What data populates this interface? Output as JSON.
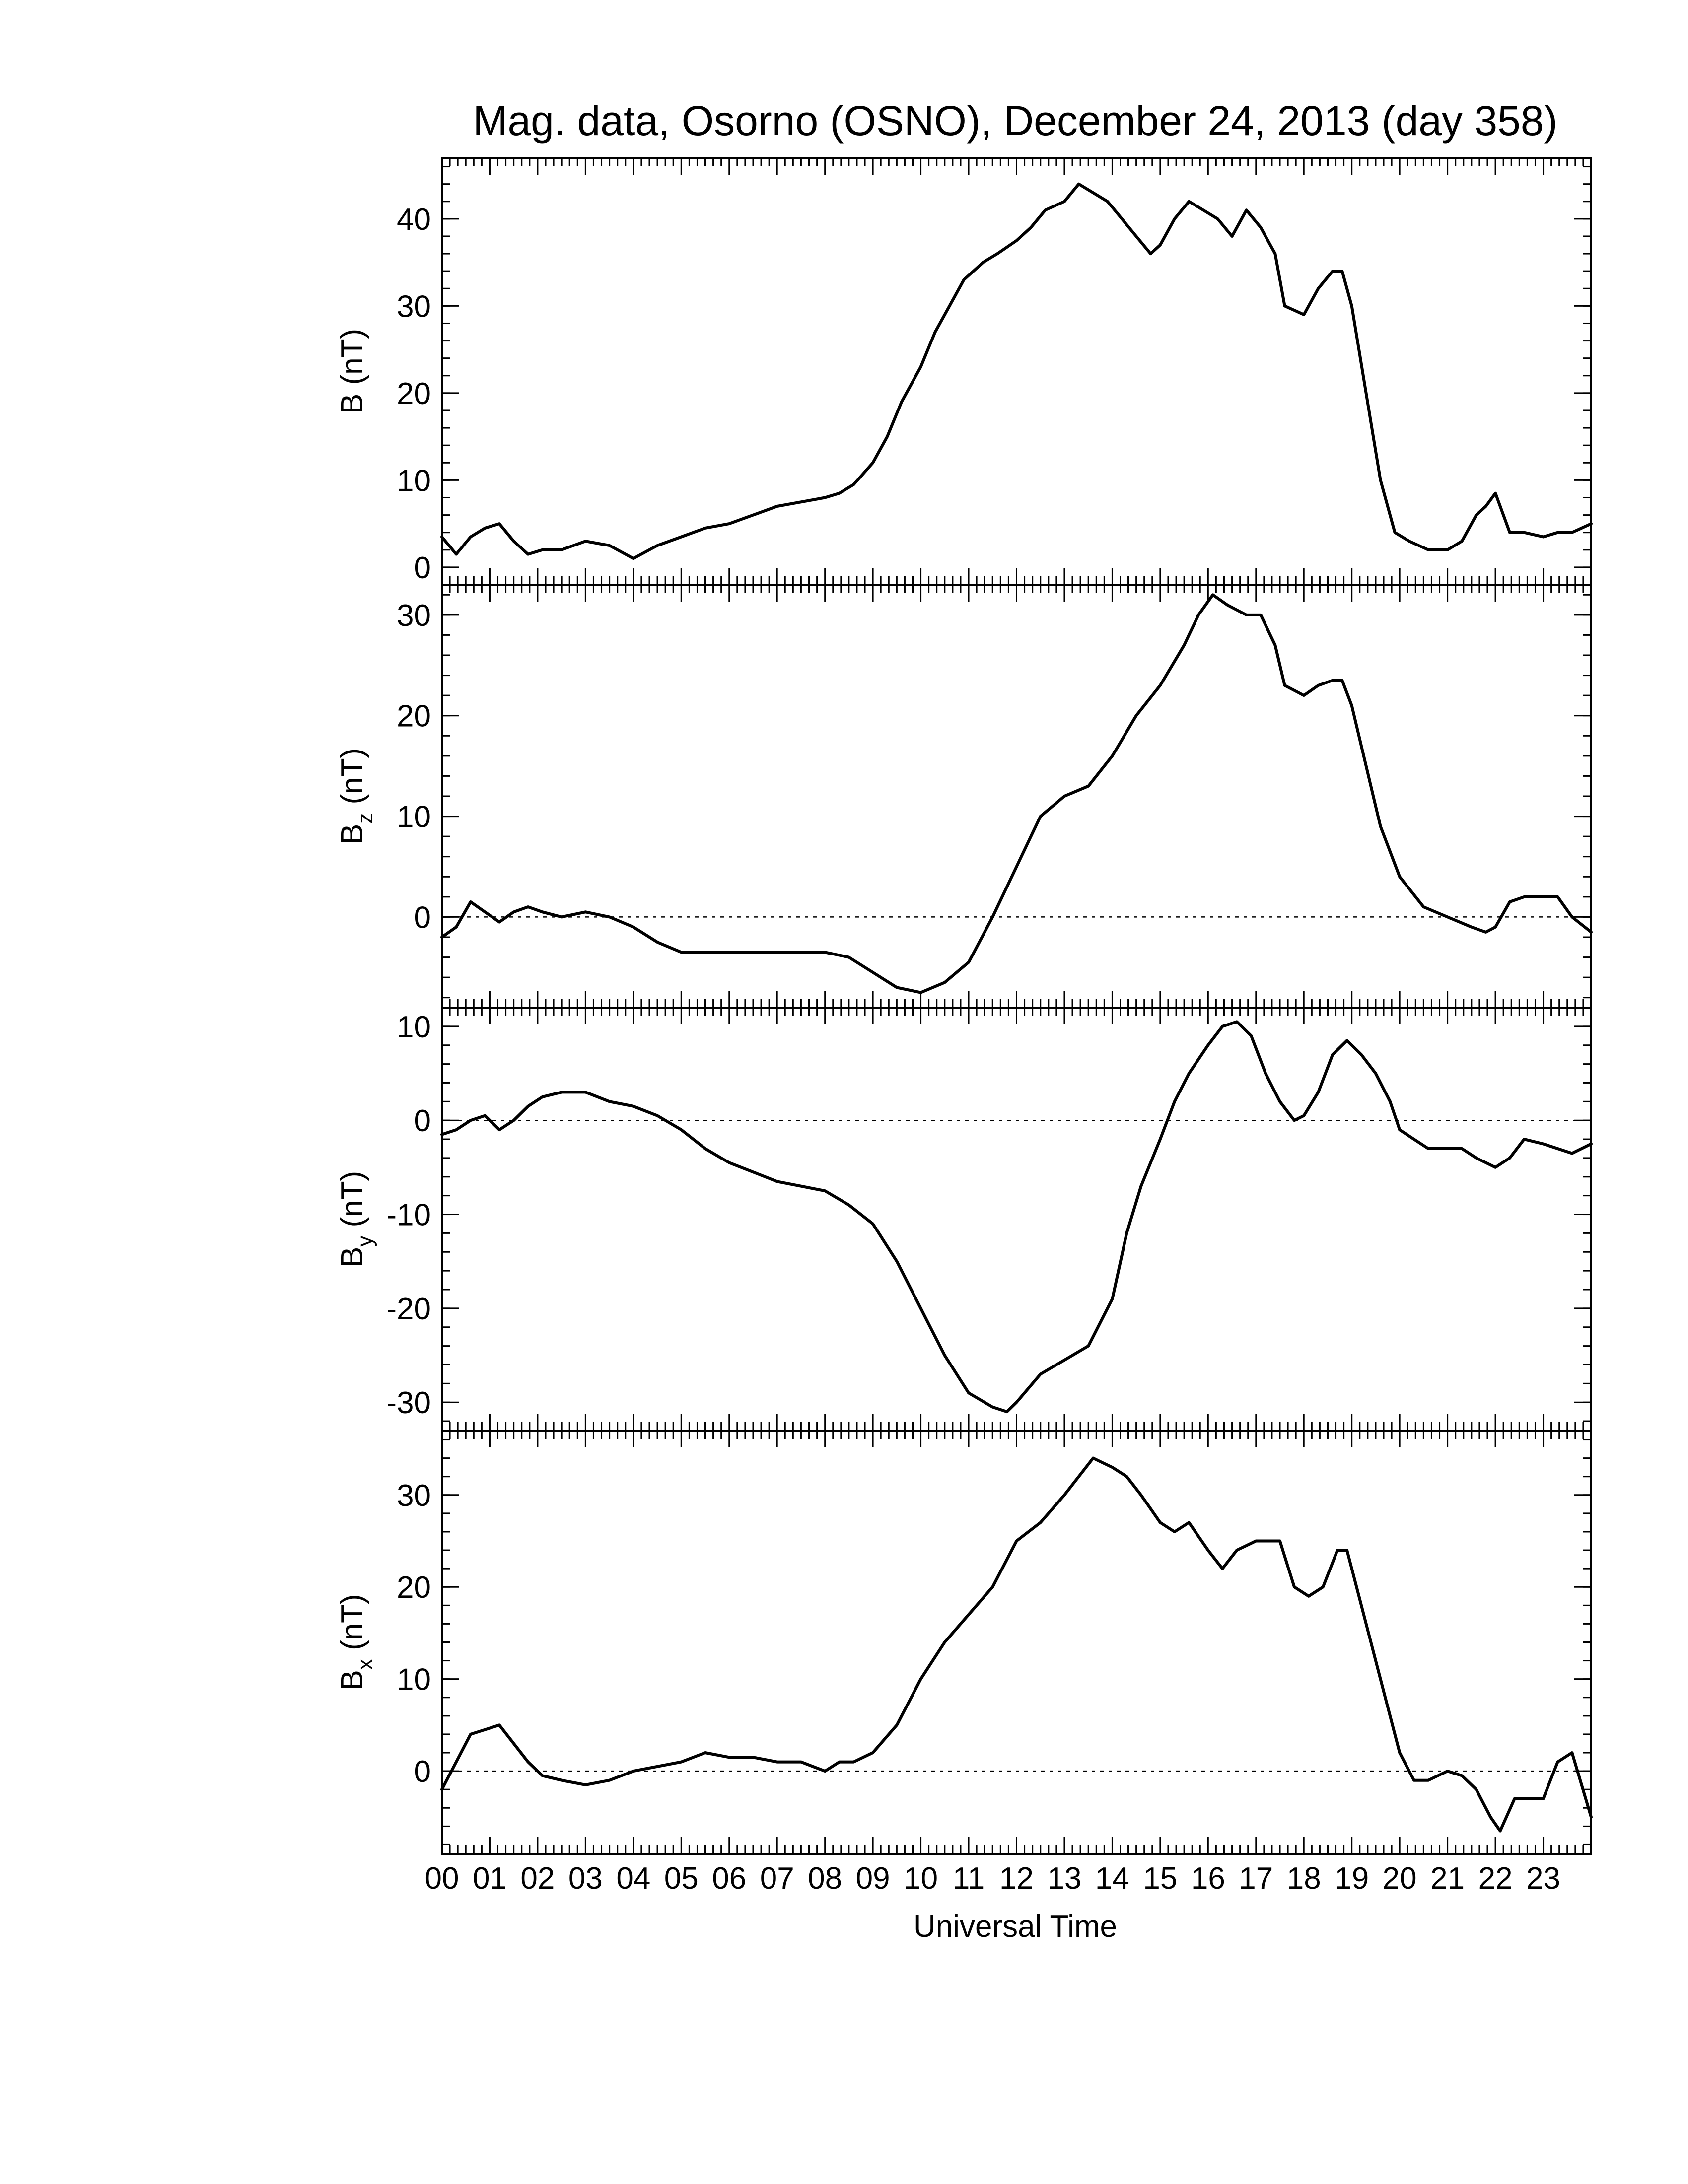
{
  "title": "Mag. data, Osorno (OSNO), December 24, 2013 (day 358)",
  "xlabel": "Universal Time",
  "x_tick_labels": [
    "00",
    "01",
    "02",
    "03",
    "04",
    "05",
    "06",
    "07",
    "08",
    "09",
    "10",
    "11",
    "12",
    "13",
    "14",
    "15",
    "16",
    "17",
    "18",
    "19",
    "20",
    "21",
    "22",
    "23"
  ],
  "colors": {
    "line": "#000000",
    "background": "#ffffff"
  },
  "chart_data": [
    {
      "type": "line",
      "ylabel": "B (nT)",
      "ylim": [
        -2,
        47
      ],
      "yticks": [
        0,
        10,
        20,
        30,
        40
      ],
      "zero_line": false,
      "x": [
        0,
        0.3,
        0.6,
        0.9,
        1.2,
        1.5,
        1.8,
        2.1,
        2.5,
        3.0,
        3.5,
        4.0,
        4.5,
        5.0,
        5.5,
        6.0,
        6.5,
        7.0,
        7.5,
        8.0,
        8.3,
        8.6,
        9.0,
        9.3,
        9.6,
        10.0,
        10.3,
        10.6,
        10.9,
        11.0,
        11.3,
        11.6,
        12.0,
        12.3,
        12.6,
        13.0,
        13.3,
        13.6,
        13.9,
        14.2,
        14.5,
        14.8,
        15.0,
        15.3,
        15.6,
        15.9,
        16.2,
        16.5,
        16.8,
        17.1,
        17.4,
        17.6,
        18.0,
        18.3,
        18.6,
        18.8,
        19.0,
        19.3,
        19.6,
        19.9,
        20.2,
        20.6,
        21.0,
        21.3,
        21.6,
        21.8,
        22.0,
        22.3,
        22.6,
        23.0,
        23.3,
        23.6,
        24.0
      ],
      "y": [
        3.5,
        1.5,
        3.5,
        4.5,
        5,
        3,
        1.5,
        2,
        2,
        3,
        2.5,
        1,
        2.5,
        3.5,
        4.5,
        5,
        6,
        7,
        7.5,
        8,
        8.5,
        9.5,
        12,
        15,
        19,
        23,
        27,
        30,
        33,
        33.5,
        35,
        36,
        37.5,
        39,
        41,
        42,
        44,
        43,
        42,
        40,
        38,
        36,
        37,
        40,
        42,
        41,
        40,
        38,
        41,
        39,
        36,
        30,
        29,
        32,
        34,
        34,
        30,
        20,
        10,
        4,
        3,
        2,
        2,
        3,
        6,
        7,
        8.5,
        4,
        4,
        3.5,
        4,
        4,
        5
      ]
    },
    {
      "type": "line",
      "ylabel": "B",
      "ylabel_sub": "z",
      "ylabel_suffix": " (nT)",
      "ylim": [
        -9,
        33
      ],
      "yticks": [
        0,
        10,
        20,
        30
      ],
      "zero_line": true,
      "x": [
        0,
        0.3,
        0.6,
        0.9,
        1.2,
        1.5,
        1.8,
        2.1,
        2.5,
        3.0,
        3.5,
        4.0,
        4.5,
        5.0,
        5.5,
        6.0,
        6.5,
        7.0,
        7.5,
        8.0,
        8.5,
        9.0,
        9.5,
        10.0,
        10.5,
        11.0,
        11.5,
        12.0,
        12.5,
        13.0,
        13.5,
        14.0,
        14.5,
        15.0,
        15.5,
        15.8,
        16.1,
        16.4,
        16.8,
        17.1,
        17.4,
        17.6,
        18.0,
        18.3,
        18.6,
        18.8,
        19.0,
        19.3,
        19.6,
        20.0,
        20.5,
        21.0,
        21.5,
        21.8,
        22.0,
        22.3,
        22.6,
        23.0,
        23.3,
        23.6,
        24.0
      ],
      "y": [
        -2,
        -1,
        1.5,
        0.5,
        -0.5,
        0.5,
        1,
        0.5,
        0,
        0.5,
        0,
        -1,
        -2.5,
        -3.5,
        -3.5,
        -3.5,
        -3.5,
        -3.5,
        -3.5,
        -3.5,
        -4,
        -5.5,
        -7,
        -7.5,
        -6.5,
        -4.5,
        0,
        5,
        10,
        12,
        13,
        16,
        20,
        23,
        27,
        30,
        32,
        31,
        30,
        30,
        27,
        23,
        22,
        23,
        23.5,
        23.5,
        21,
        15,
        9,
        4,
        1,
        0,
        -1,
        -1.5,
        -1,
        1.5,
        2,
        2,
        2,
        0,
        -1.5
      ]
    },
    {
      "type": "line",
      "ylabel": "B",
      "ylabel_sub": "y",
      "ylabel_suffix": " (nT)",
      "ylim": [
        -33,
        12
      ],
      "yticks": [
        -30,
        -20,
        -10,
        0,
        10
      ],
      "zero_line": true,
      "x": [
        0,
        0.3,
        0.6,
        0.9,
        1.2,
        1.5,
        1.8,
        2.1,
        2.5,
        3.0,
        3.5,
        4.0,
        4.5,
        5.0,
        5.5,
        6.0,
        6.5,
        7.0,
        7.5,
        8.0,
        8.5,
        9.0,
        9.5,
        10.0,
        10.5,
        11.0,
        11.5,
        11.8,
        12.0,
        12.5,
        13.0,
        13.5,
        14.0,
        14.3,
        14.6,
        15.0,
        15.3,
        15.6,
        16.0,
        16.3,
        16.6,
        16.9,
        17.2,
        17.5,
        17.8,
        18.0,
        18.3,
        18.6,
        18.9,
        19.2,
        19.5,
        19.8,
        20.0,
        20.3,
        20.6,
        21.0,
        21.3,
        21.6,
        22.0,
        22.3,
        22.6,
        23.0,
        23.3,
        23.6,
        24.0
      ],
      "y": [
        -1.5,
        -1,
        0,
        0.5,
        -1,
        0,
        1.5,
        2.5,
        3,
        3,
        2,
        1.5,
        0.5,
        -1,
        -3,
        -4.5,
        -5.5,
        -6.5,
        -7,
        -7.5,
        -9,
        -11,
        -15,
        -20,
        -25,
        -29,
        -30.5,
        -31,
        -30,
        -27,
        -25.5,
        -24,
        -19,
        -12,
        -7,
        -2,
        2,
        5,
        8,
        10,
        10.5,
        9,
        5,
        2,
        0,
        0.5,
        3,
        7,
        8.5,
        7,
        5,
        2,
        -1,
        -2,
        -3,
        -3,
        -3,
        -4,
        -5,
        -4,
        -2,
        -2.5,
        -3,
        -3.5,
        -2.5
      ]
    },
    {
      "type": "line",
      "ylabel": "B",
      "ylabel_sub": "x",
      "ylabel_suffix": " (nT)",
      "ylim": [
        -9,
        37
      ],
      "yticks": [
        0,
        10,
        20,
        30
      ],
      "zero_line": true,
      "x": [
        0,
        0.3,
        0.6,
        0.9,
        1.2,
        1.5,
        1.8,
        2.1,
        2.5,
        3.0,
        3.5,
        4.0,
        4.5,
        5.0,
        5.5,
        6.0,
        6.5,
        7.0,
        7.5,
        8.0,
        8.3,
        8.6,
        9.0,
        9.5,
        10.0,
        10.5,
        11.0,
        11.5,
        12.0,
        12.5,
        13.0,
        13.3,
        13.6,
        14.0,
        14.3,
        14.6,
        15.0,
        15.3,
        15.6,
        16.0,
        16.3,
        16.6,
        17.0,
        17.3,
        17.5,
        17.8,
        18.1,
        18.4,
        18.7,
        18.9,
        19.1,
        19.4,
        19.7,
        20.0,
        20.3,
        20.6,
        21.0,
        21.3,
        21.6,
        21.9,
        22.1,
        22.4,
        22.7,
        23.0,
        23.3,
        23.6,
        24.0
      ],
      "y": [
        -2,
        1,
        4,
        4.5,
        5,
        3,
        1,
        -0.5,
        -1,
        -1.5,
        -1,
        0,
        0.5,
        1,
        2,
        1.5,
        1.5,
        1,
        1,
        0,
        1,
        1,
        2,
        5,
        10,
        14,
        17,
        20,
        25,
        27,
        30,
        32,
        34,
        33,
        32,
        30,
        27,
        26,
        27,
        24,
        22,
        24,
        25,
        25,
        25,
        20,
        19,
        20,
        24,
        24,
        20,
        14,
        8,
        2,
        -1,
        -1,
        0,
        -0.5,
        -2,
        -5,
        -6.5,
        -3,
        -3,
        -3,
        1,
        2,
        -5
      ]
    }
  ]
}
